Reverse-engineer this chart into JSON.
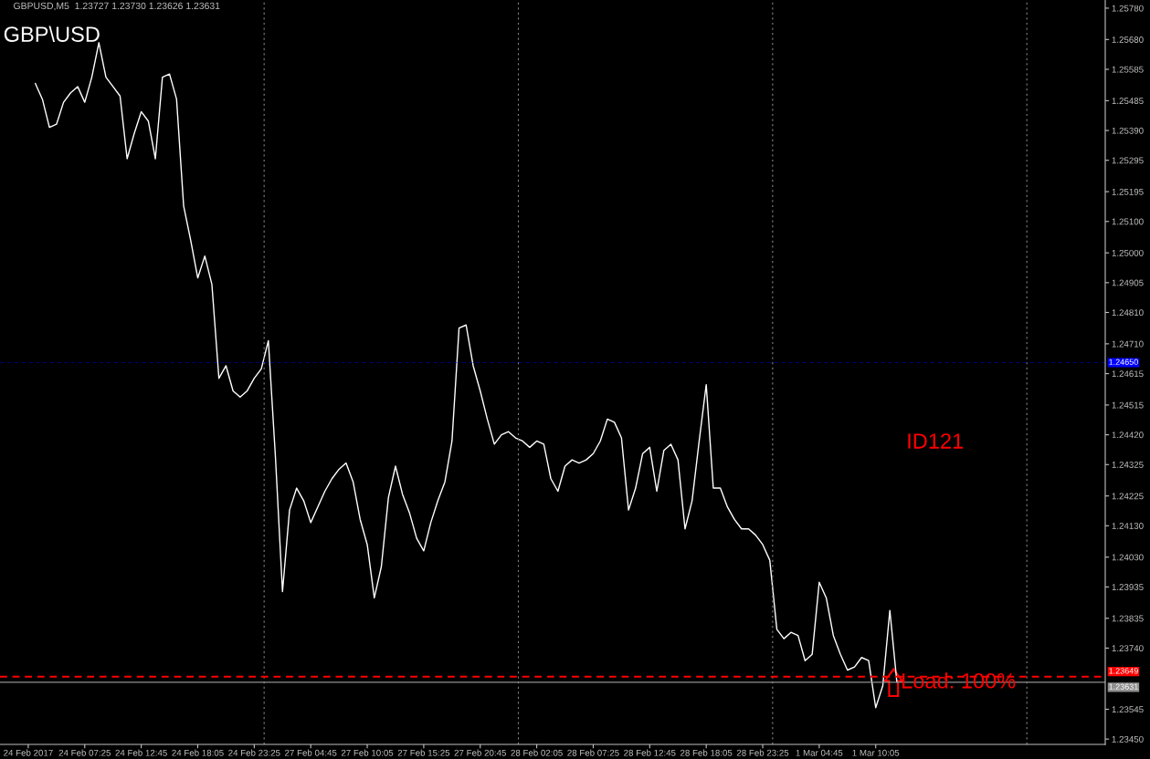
{
  "chart_data": {
    "type": "line",
    "title": "GBPUSD,M5  1.23727 1.23730 1.23626 1.23631",
    "subtitle": "GBP\\USD",
    "annotations": [
      "ID121",
      "Load: 100%"
    ],
    "categories": [
      "24 Feb 2017",
      null,
      null,
      null,
      null,
      null,
      null,
      null,
      "24 Feb 07:25",
      null,
      null,
      null,
      null,
      null,
      null,
      null,
      "24 Feb 12:45",
      null,
      null,
      null,
      null,
      null,
      null,
      null,
      "24 Feb 18:05",
      null,
      null,
      null,
      null,
      null,
      null,
      null,
      "24 Feb 23:25",
      null,
      null,
      null,
      null,
      null,
      null,
      null,
      "27 Feb 04:45",
      null,
      null,
      null,
      null,
      null,
      null,
      null,
      "27 Feb 10:05",
      null,
      null,
      null,
      null,
      null,
      null,
      null,
      "27 Feb 15:25",
      null,
      null,
      null,
      null,
      null,
      null,
      null,
      "27 Feb 20:45",
      null,
      null,
      null,
      null,
      null,
      null,
      null,
      "28 Feb 02:05",
      null,
      null,
      null,
      null,
      null,
      null,
      null,
      "28 Feb 07:25",
      null,
      null,
      null,
      null,
      null,
      null,
      null,
      "28 Feb 12:45",
      null,
      null,
      null,
      null,
      null,
      null,
      null,
      "28 Feb 18:05",
      null,
      null,
      null,
      null,
      null,
      null,
      null,
      "28 Feb 23:25",
      null,
      null,
      null,
      null,
      null,
      null,
      null,
      "1 Mar 04:45",
      null,
      null,
      null,
      null,
      null,
      null,
      null,
      "1 Mar 10:05",
      null,
      null,
      null,
      null,
      null,
      null,
      null,
      null,
      null,
      null,
      null,
      null,
      null,
      null,
      null,
      null,
      null,
      null,
      null,
      null,
      null,
      null,
      null,
      null,
      null,
      null,
      null,
      null,
      null,
      null,
      null,
      null
    ],
    "series": [
      {
        "color": "#ffffff",
        "values": [
          null,
          1.2554,
          1.2549,
          1.254,
          1.2541,
          1.2548,
          1.2551,
          1.2553,
          1.2548,
          1.2556,
          1.2567,
          1.2556,
          1.2553,
          1.255,
          1.253,
          1.2538,
          1.2545,
          1.2542,
          1.253,
          1.2556,
          1.2557,
          1.2549,
          1.2515,
          1.2504,
          1.2492,
          1.2499,
          1.249,
          1.246,
          1.2464,
          1.2456,
          1.2454,
          1.2456,
          1.246,
          1.2463,
          1.2472,
          1.2435,
          1.2392,
          1.2418,
          1.2425,
          1.2421,
          1.2414,
          1.2419,
          1.2424,
          1.2428,
          1.2431,
          1.2433,
          1.2427,
          1.2415,
          1.2407,
          1.239,
          1.24,
          1.2422,
          1.2432,
          1.2423,
          1.2417,
          1.2409,
          1.2405,
          1.2414,
          1.2421,
          1.2427,
          1.244,
          1.2476,
          1.2477,
          1.2464,
          1.2456,
          1.2447,
          1.2439,
          1.2442,
          1.2443,
          1.2441,
          1.244,
          1.2438,
          1.244,
          1.2439,
          1.2428,
          1.2424,
          1.2432,
          1.2434,
          1.2433,
          1.2434,
          1.2436,
          1.244,
          1.2447,
          1.2446,
          1.2441,
          1.2418,
          1.2425,
          1.2436,
          1.2438,
          1.2424,
          1.2437,
          1.2439,
          1.2434,
          1.2412,
          1.2421,
          1.244,
          1.2458,
          1.2425,
          1.2425,
          1.2419,
          1.2415,
          1.2412,
          1.2412,
          1.241,
          1.2407,
          1.2402,
          1.238,
          1.2377,
          1.2379,
          1.2378,
          1.237,
          1.2372,
          1.2395,
          1.239,
          1.2378,
          1.2372,
          1.2367,
          1.2368,
          1.2371,
          1.237,
          1.2355,
          1.2362,
          1.2386,
          1.23631,
          null,
          null,
          null,
          null,
          null,
          null,
          null,
          null,
          null,
          null,
          null,
          null,
          null,
          null,
          null,
          null,
          null,
          null,
          null,
          null,
          null,
          null,
          null,
          null,
          null,
          null,
          null,
          null,
          null
        ]
      }
    ],
    "ylim": [
      1.23433,
      1.25806
    ],
    "yticks": [
      {
        "value": 1.2578,
        "label": "1.25780"
      },
      {
        "value": 1.2568,
        "label": "1.25680"
      },
      {
        "value": 1.25585,
        "label": "1.25585"
      },
      {
        "value": 1.25485,
        "label": "1.25485"
      },
      {
        "value": 1.2539,
        "label": "1.25390"
      },
      {
        "value": 1.25295,
        "label": "1.25295"
      },
      {
        "value": 1.25195,
        "label": "1.25195"
      },
      {
        "value": 1.251,
        "label": "1.25100"
      },
      {
        "value": 1.25,
        "label": "1.25000"
      },
      {
        "value": 1.24905,
        "label": "1.24905"
      },
      {
        "value": 1.2481,
        "label": "1.24810"
      },
      {
        "value": 1.2471,
        "label": "1.24710"
      },
      {
        "value": 1.24615,
        "label": "1.24615"
      },
      {
        "value": 1.24515,
        "label": "1.24515"
      },
      {
        "value": 1.2442,
        "label": "1.24420"
      },
      {
        "value": 1.24325,
        "label": "1.24325"
      },
      {
        "value": 1.24225,
        "label": "1.24225"
      },
      {
        "value": 1.2413,
        "label": "1.24130"
      },
      {
        "value": 1.2403,
        "label": "1.24030"
      },
      {
        "value": 1.23935,
        "label": "1.23935"
      },
      {
        "value": 1.23835,
        "label": "1.23835"
      },
      {
        "value": 1.2374,
        "label": "1.23740"
      },
      {
        "value": 1.23545,
        "label": "1.23545"
      },
      {
        "value": 1.2345,
        "label": "1.23450"
      }
    ],
    "ref_lines": [
      {
        "axis": "y",
        "value": 1.2465,
        "label": "1.24650",
        "color": "#0000ff",
        "line_style": "dashed"
      },
      {
        "axis": "y",
        "value": 1.23649,
        "label": "1.23649",
        "color": "#ff0000",
        "line_style": "dashed"
      },
      {
        "axis": "y",
        "value": 1.23631,
        "label": "1.23631",
        "color": "#909090",
        "line_style": "solid"
      }
    ],
    "grid": false,
    "legend": false,
    "marker": "none",
    "line_style": "solid"
  }
}
